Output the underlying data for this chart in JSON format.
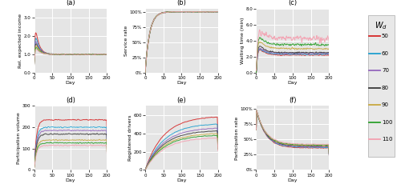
{
  "wd_values": [
    50,
    60,
    70,
    80,
    90,
    100,
    110
  ],
  "colors": [
    "#d62728",
    "#1f9fcf",
    "#9467bd",
    "#3a3a3a",
    "#c8a840",
    "#2ca02c",
    "#f4a0b0"
  ],
  "days": 201,
  "panel_labels": [
    "(a)",
    "(b)",
    "(c)",
    "(d)",
    "(e)",
    "(f)"
  ],
  "ylabels": [
    "Rel. expected income",
    "Service rate",
    "Waiting time (min)",
    "Participation volume",
    "Registered drivers",
    "Participation rate"
  ],
  "xlabel": "Day",
  "background_color": "#e5e5e5",
  "fig_bg": "#ffffff",
  "grid_color": "#ffffff",
  "legend_title": "W_d"
}
